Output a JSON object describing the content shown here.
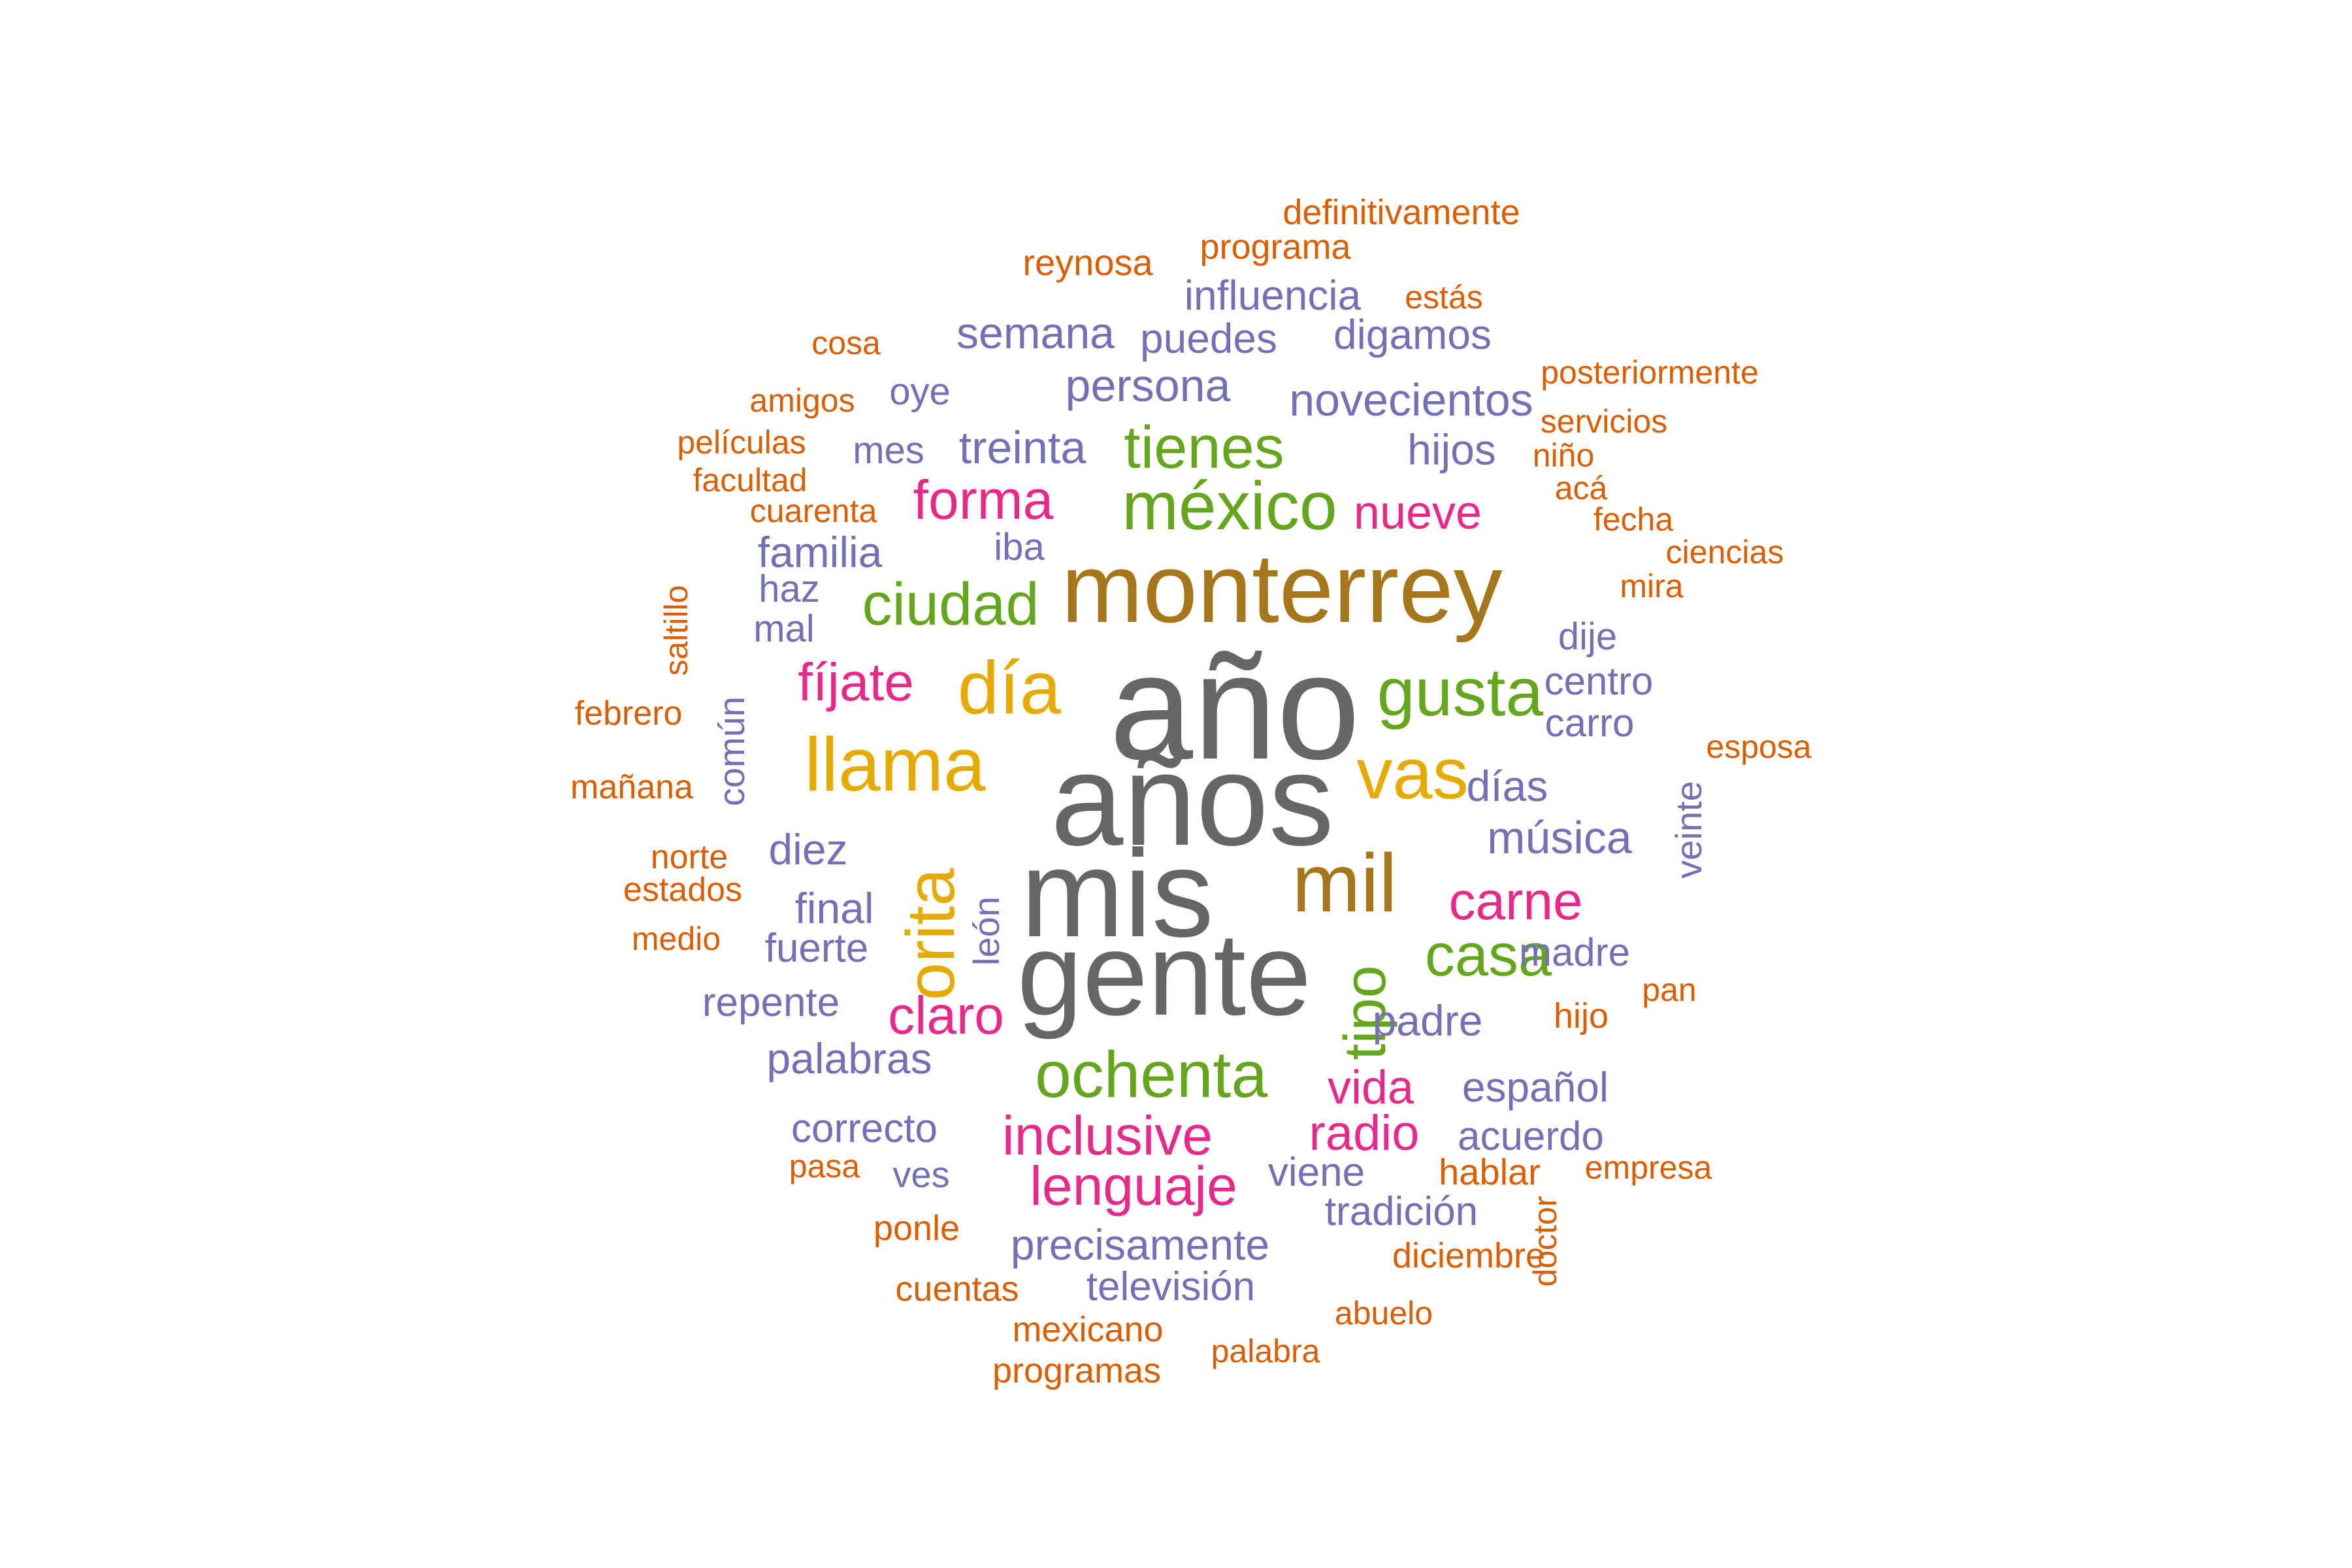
{
  "colors": {
    "gray": "#666666",
    "bronze": "#A6761D",
    "green": "#66A61E",
    "gold": "#E6AB02",
    "pink": "#E7298A",
    "purple": "#7570B3",
    "orange": "#D95F02"
  },
  "words": [
    {
      "text": "año",
      "color": "gray",
      "weight": 100
    },
    {
      "text": "años",
      "color": "gray",
      "weight": 98
    },
    {
      "text": "mis",
      "color": "gray",
      "weight": 97
    },
    {
      "text": "gente",
      "color": "gray",
      "weight": 96
    },
    {
      "text": "monterrey",
      "color": "bronze",
      "weight": 90
    },
    {
      "text": "mil",
      "color": "bronze",
      "weight": 70
    },
    {
      "text": "méxico",
      "color": "green",
      "weight": 60
    },
    {
      "text": "gusta",
      "color": "green",
      "weight": 60
    },
    {
      "text": "ochenta",
      "color": "green",
      "weight": 58
    },
    {
      "text": "casa",
      "color": "green",
      "weight": 52
    },
    {
      "text": "tienes",
      "color": "green",
      "weight": 52
    },
    {
      "text": "ciudad",
      "color": "green",
      "weight": 52
    },
    {
      "text": "tipo",
      "color": "green",
      "weight": 50
    },
    {
      "text": "llama",
      "color": "gold",
      "weight": 66
    },
    {
      "text": "día",
      "color": "gold",
      "weight": 64
    },
    {
      "text": "vas",
      "color": "gold",
      "weight": 62
    },
    {
      "text": "orita",
      "color": "gold",
      "weight": 62
    },
    {
      "text": "inclusive",
      "color": "pink",
      "weight": 48
    },
    {
      "text": "lenguaje",
      "color": "pink",
      "weight": 46
    },
    {
      "text": "forma",
      "color": "pink",
      "weight": 46
    },
    {
      "text": "fíjate",
      "color": "pink",
      "weight": 44
    },
    {
      "text": "claro",
      "color": "pink",
      "weight": 44
    },
    {
      "text": "carne",
      "color": "pink",
      "weight": 44
    },
    {
      "text": "radio",
      "color": "pink",
      "weight": 40
    },
    {
      "text": "vida",
      "color": "pink",
      "weight": 38
    },
    {
      "text": "nueve",
      "color": "pink",
      "weight": 38
    },
    {
      "text": "novecientos",
      "color": "purple",
      "weight": 34
    },
    {
      "text": "música",
      "color": "purple",
      "weight": 34
    },
    {
      "text": "persona",
      "color": "purple",
      "weight": 34
    },
    {
      "text": "treinta",
      "color": "purple",
      "weight": 34
    },
    {
      "text": "semana",
      "color": "purple",
      "weight": 32
    },
    {
      "text": "precisamente",
      "color": "purple",
      "weight": 32
    },
    {
      "text": "palabras",
      "color": "purple",
      "weight": 32
    },
    {
      "text": "familia",
      "color": "purple",
      "weight": 32
    },
    {
      "text": "padre",
      "color": "purple",
      "weight": 32
    },
    {
      "text": "final",
      "color": "purple",
      "weight": 32
    },
    {
      "text": "diez",
      "color": "purple",
      "weight": 32
    },
    {
      "text": "días",
      "color": "purple",
      "weight": 32
    },
    {
      "text": "hijos",
      "color": "purple",
      "weight": 32
    },
    {
      "text": "puedes",
      "color": "purple",
      "weight": 30
    },
    {
      "text": "digamos",
      "color": "purple",
      "weight": 30
    },
    {
      "text": "influencia",
      "color": "purple",
      "weight": 30
    },
    {
      "text": "español",
      "color": "purple",
      "weight": 30
    },
    {
      "text": "fuerte",
      "color": "purple",
      "weight": 30
    },
    {
      "text": "repente",
      "color": "purple",
      "weight": 30
    },
    {
      "text": "correcto",
      "color": "purple",
      "weight": 30
    },
    {
      "text": "tradición",
      "color": "purple",
      "weight": 30
    },
    {
      "text": "viene",
      "color": "purple",
      "weight": 30
    },
    {
      "text": "acuerdo",
      "color": "purple",
      "weight": 30
    },
    {
      "text": "televisión",
      "color": "purple",
      "weight": 30
    },
    {
      "text": "madre",
      "color": "purple",
      "weight": 30
    },
    {
      "text": "centro",
      "color": "purple",
      "weight": 30
    },
    {
      "text": "carro",
      "color": "purple",
      "weight": 30
    },
    {
      "text": "oye",
      "color": "purple",
      "weight": 28
    },
    {
      "text": "mes",
      "color": "purple",
      "weight": 28
    },
    {
      "text": "iba",
      "color": "purple",
      "weight": 28
    },
    {
      "text": "haz",
      "color": "purple",
      "weight": 28
    },
    {
      "text": "mal",
      "color": "purple",
      "weight": 28
    },
    {
      "text": "dije",
      "color": "purple",
      "weight": 28
    },
    {
      "text": "ves",
      "color": "purple",
      "weight": 28
    },
    {
      "text": "común",
      "color": "purple",
      "weight": 28
    },
    {
      "text": "león",
      "color": "purple",
      "weight": 28
    },
    {
      "text": "veinte",
      "color": "purple",
      "weight": 28
    },
    {
      "text": "definitivamente",
      "color": "orange",
      "weight": 26
    },
    {
      "text": "programa",
      "color": "orange",
      "weight": 26
    },
    {
      "text": "reynosa",
      "color": "orange",
      "weight": 28
    },
    {
      "text": "estás",
      "color": "orange",
      "weight": 24
    },
    {
      "text": "cosa",
      "color": "orange",
      "weight": 24
    },
    {
      "text": "amigos",
      "color": "orange",
      "weight": 24
    },
    {
      "text": "películas",
      "color": "orange",
      "weight": 24
    },
    {
      "text": "facultad",
      "color": "orange",
      "weight": 24
    },
    {
      "text": "cuarenta",
      "color": "orange",
      "weight": 24
    },
    {
      "text": "posteriormente",
      "color": "orange",
      "weight": 24
    },
    {
      "text": "servicios",
      "color": "orange",
      "weight": 24
    },
    {
      "text": "niño",
      "color": "orange",
      "weight": 24
    },
    {
      "text": "acá",
      "color": "orange",
      "weight": 24
    },
    {
      "text": "fecha",
      "color": "orange",
      "weight": 24
    },
    {
      "text": "ciencias",
      "color": "orange",
      "weight": 24
    },
    {
      "text": "mira",
      "color": "orange",
      "weight": 24
    },
    {
      "text": "esposa",
      "color": "orange",
      "weight": 24
    },
    {
      "text": "febrero",
      "color": "orange",
      "weight": 24
    },
    {
      "text": "mañana",
      "color": "orange",
      "weight": 24
    },
    {
      "text": "norte",
      "color": "orange",
      "weight": 24
    },
    {
      "text": "estados",
      "color": "orange",
      "weight": 24
    },
    {
      "text": "medio",
      "color": "orange",
      "weight": 24
    },
    {
      "text": "saltillo",
      "color": "orange",
      "weight": 24
    },
    {
      "text": "hijo",
      "color": "orange",
      "weight": 26
    },
    {
      "text": "pan",
      "color": "orange",
      "weight": 24
    },
    {
      "text": "hablar",
      "color": "orange",
      "weight": 26
    },
    {
      "text": "empresa",
      "color": "orange",
      "weight": 24
    },
    {
      "text": "pasa",
      "color": "orange",
      "weight": 24
    },
    {
      "text": "ponle",
      "color": "orange",
      "weight": 26
    },
    {
      "text": "diciembre",
      "color": "orange",
      "weight": 28
    },
    {
      "text": "doctor",
      "color": "orange",
      "weight": 24
    },
    {
      "text": "cuentas",
      "color": "orange",
      "weight": 26
    },
    {
      "text": "abuelo",
      "color": "orange",
      "weight": 24
    },
    {
      "text": "mexicano",
      "color": "orange",
      "weight": 26
    },
    {
      "text": "palabra",
      "color": "orange",
      "weight": 24
    },
    {
      "text": "programas",
      "color": "orange",
      "weight": 26
    }
  ]
}
